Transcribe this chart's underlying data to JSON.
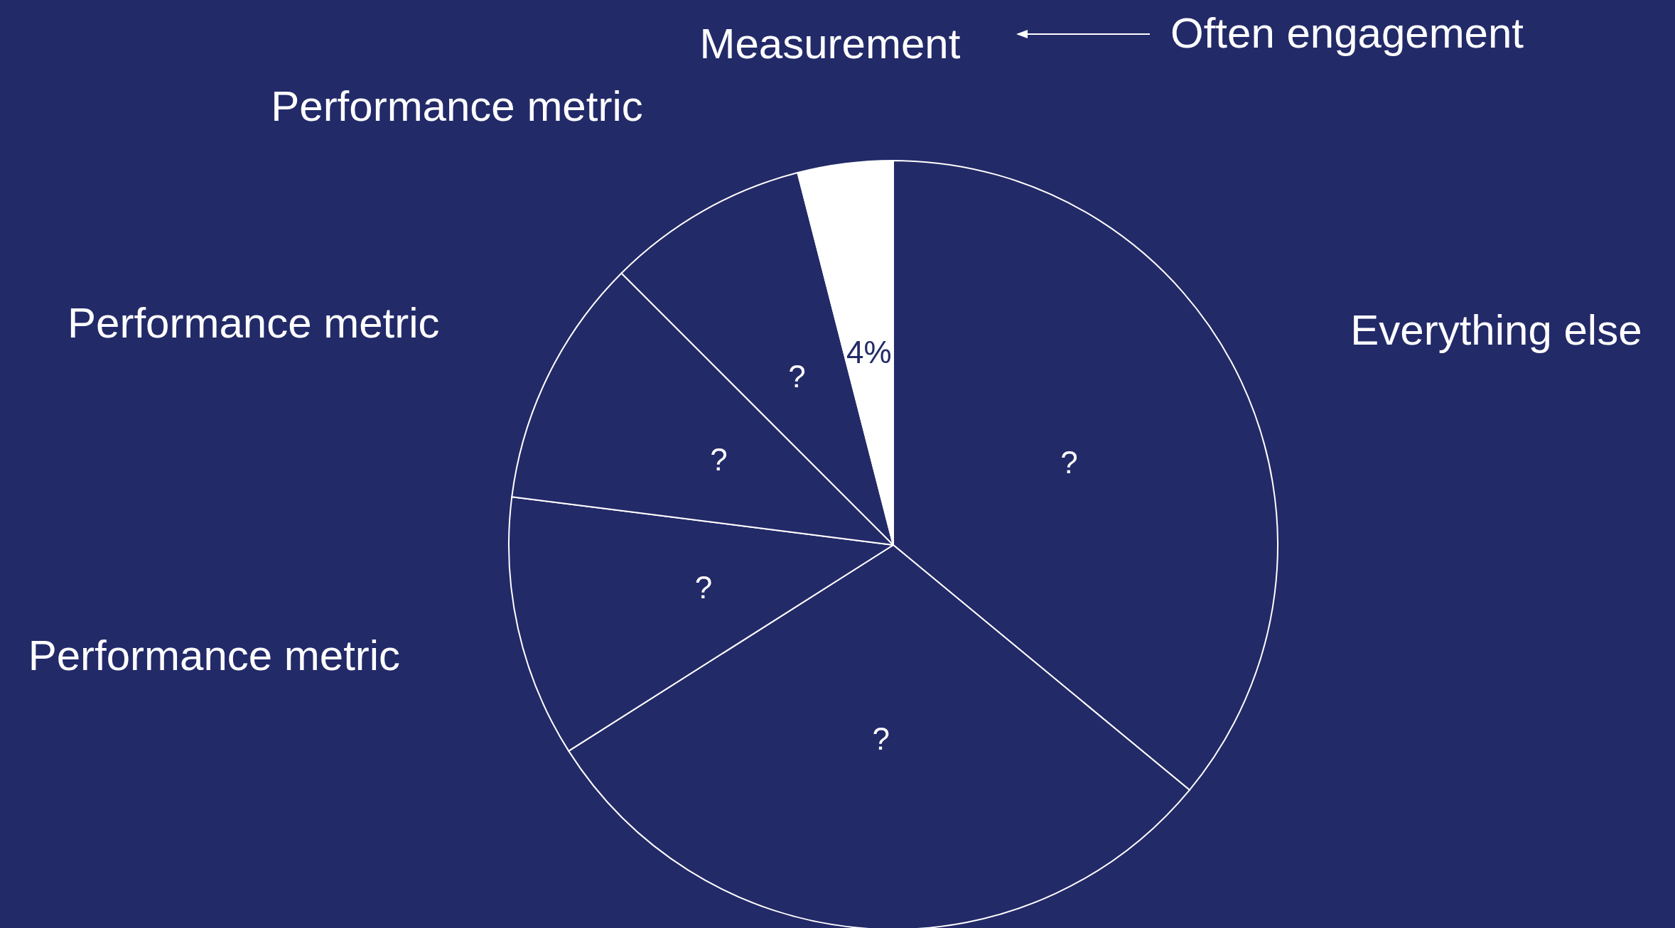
{
  "chart_data": {
    "type": "pie",
    "categories": [
      "Everything else",
      null,
      "Performance metric",
      "Performance metric",
      "Performance metric",
      "Measurement"
    ],
    "values": [
      36,
      30,
      11,
      10.5,
      8.5,
      4
    ],
    "value_labels": [
      "?",
      "?",
      "?",
      "?",
      "?",
      "4%"
    ],
    "colors": [
      "#232a68",
      "#232a68",
      "#232a68",
      "#232a68",
      "#232a68",
      "#ffffff"
    ],
    "annotations": [
      "Often engagement"
    ]
  }
}
